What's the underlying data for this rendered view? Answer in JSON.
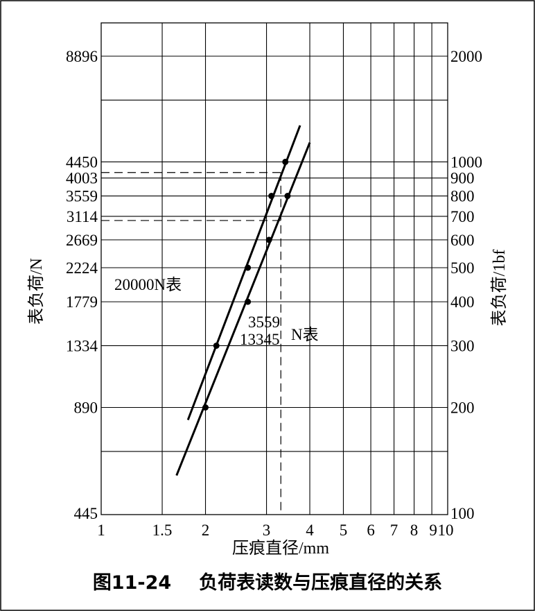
{
  "chart_data": {
    "type": "line",
    "xlabel": "压痕直径/mm",
    "ylabel_left": "表负荷/N",
    "ylabel_right": "表负荷/1bf",
    "x_scale": "log",
    "y_scale": "log",
    "xlim": [
      1,
      10
    ],
    "ylim_N": [
      445,
      8896
    ],
    "x_ticks": [
      "1",
      "1.5",
      "2",
      "3",
      "4",
      "5",
      "6",
      "7",
      "8",
      "9",
      "10"
    ],
    "y_ticks_left": [
      "445",
      "890",
      "1334",
      "1779",
      "2224",
      "2669",
      "3114",
      "3559",
      "4003",
      "4450",
      "8896"
    ],
    "y_ticks_right": [
      "100",
      "200",
      "300",
      "400",
      "500",
      "600",
      "700",
      "800",
      "900",
      "1000",
      "2000"
    ],
    "grid": true,
    "series": [
      {
        "name": "20000N表",
        "points": [
          [
            2.15,
            1334
          ],
          [
            2.65,
            2224
          ],
          [
            3.1,
            3559
          ],
          [
            3.4,
            4450
          ]
        ],
        "line": [
          [
            1.78,
            820
          ],
          [
            3.75,
            5650
          ]
        ]
      },
      {
        "name": "3559 13345N表",
        "points": [
          [
            2.0,
            890
          ],
          [
            2.65,
            1779
          ],
          [
            3.05,
            2669
          ],
          [
            3.45,
            3559
          ]
        ],
        "line": [
          [
            1.65,
            570
          ],
          [
            4.0,
            5050
          ]
        ]
      }
    ],
    "reference_lines": [
      {
        "y": 4150,
        "x": 3.3
      },
      {
        "y": 3030,
        "x": 3.3
      }
    ],
    "annotations": {
      "series_a_label": "20000N表",
      "series_b_label_top": "3559",
      "series_b_label_bottom": "13345",
      "series_b_label_suffix": "N表"
    }
  },
  "caption": {
    "number": "图11-24",
    "text": "负荷表读数与压痕直径的关系"
  }
}
